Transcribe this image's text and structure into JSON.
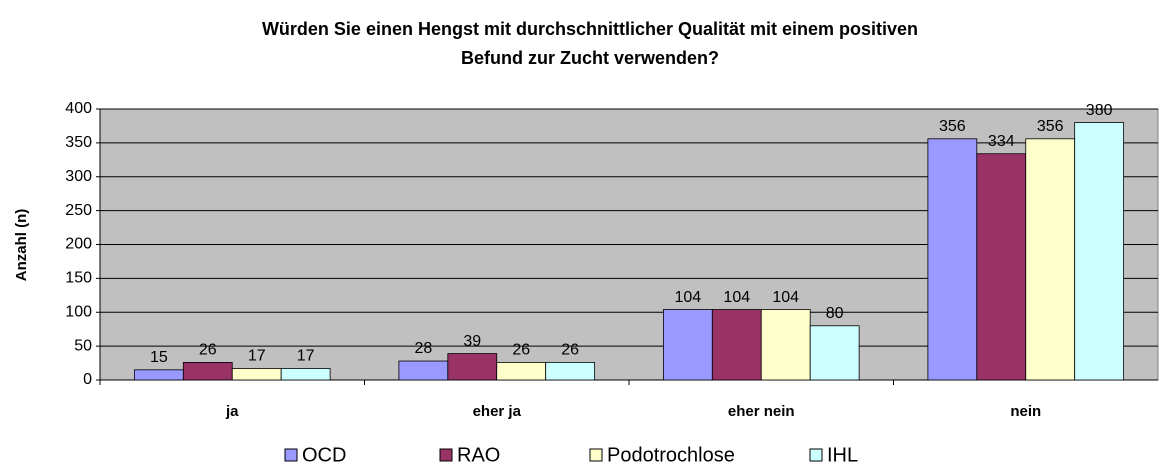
{
  "chart_data": {
    "type": "bar",
    "title": "Würden Sie einen Hengst mit durchschnittlicher Qualität mit einem positiven",
    "subtitle": "Befund zur Zucht verwenden?",
    "y_label": "Anzahl (n)",
    "categories": [
      "ja",
      "eher ja",
      "eher nein",
      "nein"
    ],
    "series": [
      {
        "name": "OCD",
        "color": "#9999ff",
        "values": [
          15,
          28,
          104,
          356
        ]
      },
      {
        "name": "RAO",
        "color": "#993366",
        "values": [
          26,
          39,
          104,
          334
        ]
      },
      {
        "name": "Podotrochlose",
        "color": "#ffffcc",
        "values": [
          17,
          26,
          104,
          356
        ]
      },
      {
        "name": "IHL",
        "color": "#ccffff",
        "values": [
          17,
          26,
          80,
          380
        ]
      }
    ],
    "ylim": [
      0,
      400
    ],
    "yticks": [
      0,
      50,
      100,
      150,
      200,
      250,
      300,
      350,
      400
    ],
    "grid": true,
    "legend": "bottom"
  }
}
